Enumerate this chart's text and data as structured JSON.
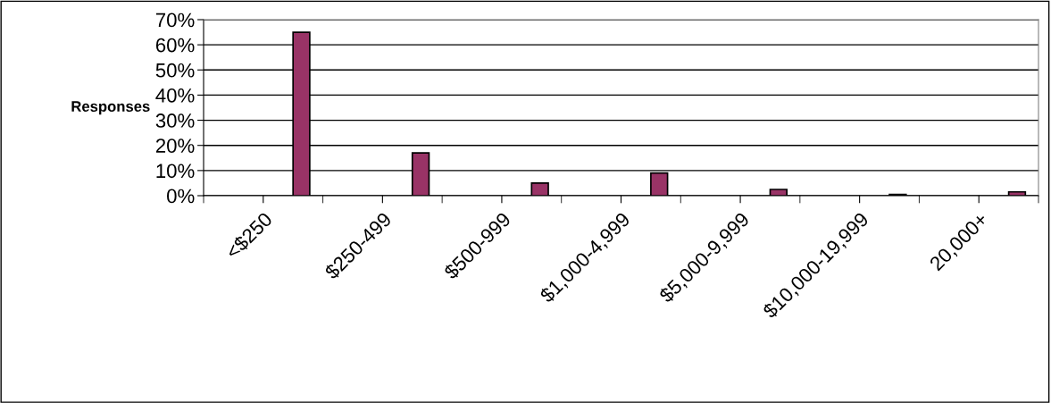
{
  "chart_data": {
    "type": "bar",
    "ylabel": "Responses",
    "categories": [
      "<$250",
      "$250-499",
      "$500-999",
      "$1,000-4,999",
      "$5,000-9,999",
      "$10,000-19,999",
      "20,000+"
    ],
    "values": [
      65,
      17,
      5,
      9,
      2.5,
      0.5,
      1.5
    ],
    "color": "#993366",
    "ylim": [
      0,
      70
    ],
    "yticks": [
      {
        "value": 0,
        "label": "0%"
      },
      {
        "value": 10,
        "label": "10%"
      },
      {
        "value": 20,
        "label": "20%"
      },
      {
        "value": 30,
        "label": "30%"
      },
      {
        "value": 40,
        "label": "40%"
      },
      {
        "value": 50,
        "label": "50%"
      },
      {
        "value": 60,
        "label": "60%"
      },
      {
        "value": 70,
        "label": "70%"
      }
    ],
    "grid": "y",
    "legend": false
  }
}
